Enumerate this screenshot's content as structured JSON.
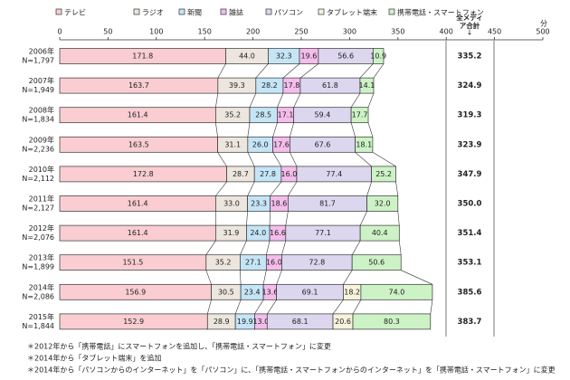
{
  "chart_data": {
    "type": "stacked_bar_horizontal",
    "categories": [
      "2006年",
      "2007年",
      "2008年",
      "2009年",
      "2010年",
      "2011年",
      "2012年",
      "2013年",
      "2014年",
      "2015年"
    ],
    "sample_sizes": [
      "N=1,797",
      "N=1,949",
      "N=1,834",
      "N=2,236",
      "N=2,112",
      "N=2,127",
      "N=2,076",
      "N=1,899",
      "N=2,086",
      "N=1,844"
    ],
    "series": [
      {
        "name": "テレビ",
        "color": "#f9cdd2",
        "values": [
          171.8,
          163.7,
          161.4,
          163.5,
          172.8,
          161.4,
          161.4,
          151.5,
          156.9,
          152.9
        ],
        "value_labels": [
          "171.8",
          "163.7",
          "161.4",
          "163.5",
          "172.8",
          "161.4",
          "161.4",
          "151.5",
          "156.9",
          "152.9"
        ]
      },
      {
        "name": "ラジオ",
        "color": "#ece6de",
        "values": [
          44.0,
          39.3,
          35.2,
          31.1,
          28.7,
          33.0,
          31.9,
          35.2,
          30.5,
          28.9
        ],
        "value_labels": [
          "44.0",
          "39.3",
          "35.2",
          "31.1",
          "28.7",
          "33.0",
          "31.9",
          "35.2",
          "30.5",
          "28.9"
        ]
      },
      {
        "name": "新聞",
        "color": "#c5e5f7",
        "values": [
          32.3,
          28.2,
          28.5,
          26.0,
          27.8,
          23.3,
          24.0,
          27.1,
          23.4,
          19.9
        ],
        "value_labels": [
          "32.3",
          "28.2",
          "28.5",
          "26.0",
          "27.8",
          "23.3",
          "24.0",
          "27.1",
          "23.4",
          "19.9"
        ]
      },
      {
        "name": "雑誌",
        "color": "#f4bdec",
        "values": [
          19.6,
          17.8,
          17.1,
          17.6,
          16.0,
          18.6,
          16.6,
          16.0,
          13.6,
          13.0
        ],
        "value_labels": [
          "19.6",
          "17.8",
          "17.1",
          "17.6",
          "16.0",
          "18.6",
          "16.6",
          "16.0",
          "13.6",
          "13.0"
        ]
      },
      {
        "name": "パソコン",
        "color": "#dcd6ee",
        "values": [
          56.6,
          61.8,
          59.4,
          67.6,
          77.4,
          81.7,
          77.1,
          72.8,
          69.1,
          68.1
        ],
        "value_labels": [
          "56.6",
          "61.8",
          "59.4",
          "67.6",
          "77.4",
          "81.7",
          "77.1",
          "72.8",
          "69.1",
          "68.1"
        ]
      },
      {
        "name": "タブレット端末",
        "color": "#f7f3dc",
        "values": [
          null,
          null,
          null,
          null,
          null,
          null,
          null,
          null,
          18.2,
          20.6
        ],
        "value_labels": [
          null,
          null,
          null,
          null,
          null,
          null,
          null,
          null,
          "18.2",
          "20.6"
        ]
      },
      {
        "name": "携帯電話・スマートフォン",
        "color": "#cdf2c6",
        "values": [
          10.9,
          14.1,
          17.7,
          18.1,
          25.2,
          32.0,
          40.4,
          50.6,
          74.0,
          80.3
        ],
        "value_labels": [
          "10.9",
          "14.1",
          "17.7",
          "18.1",
          "25.2",
          "32.0",
          "40.4",
          "50.6",
          "74.0",
          "80.3"
        ]
      }
    ],
    "totals_header": "全メディア合計",
    "totals": [
      335.2,
      324.9,
      319.3,
      323.9,
      347.9,
      350.0,
      351.4,
      353.1,
      385.6,
      383.7
    ],
    "total_labels": [
      "335.2",
      "324.9",
      "319.3",
      "323.9",
      "347.9",
      "350.0",
      "351.4",
      "353.1",
      "385.6",
      "383.7"
    ],
    "xlim": [
      0,
      500
    ],
    "xticks": [
      0,
      50,
      100,
      150,
      200,
      250,
      300,
      350,
      400,
      450,
      500
    ],
    "x_unit": "分",
    "notes": [
      "＊2012年から「携帯電話」にスマートフォンを追加し、「携帯電話・スマートフォン」に変更",
      "＊2014年から「タブレット端末」を追加",
      "＊2014年から「パソコンからのインターネット」を「パソコン」に、「携帯電話・スマートフォンからのインターネット」を「携帯電話・スマートフォン」に変更"
    ]
  }
}
